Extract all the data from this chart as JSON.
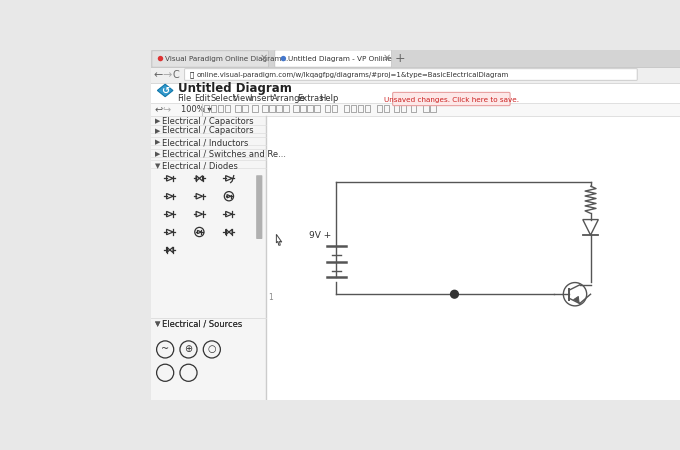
{
  "bg_color": "#e8e8e8",
  "canvas_color": "#ffffff",
  "tab_bar_color": "#d0d0d0",
  "browser_url": "online.visual-paradigm.com/w/lkqagfpg/diagrams/#proj=1&type=BasicElectricalDiagram",
  "tab1_text": "Visual Paradigm Online Diagram...",
  "tab2_text": "Untitled Diagram - VP Online",
  "title_text": "Untitled Diagram",
  "menu_items": [
    "File",
    "Edit",
    "Select",
    "View",
    "Insert",
    "Arrange",
    "Extras",
    "Help"
  ],
  "unsaved_text": "Unsaved changes. Click here to save.",
  "sidebar_categories": [
    "Electrical / Capacitors",
    "Electrical / Inductors",
    "Electrical / Switches and Re...",
    "Electrical / Diodes",
    "Electrical / Sources"
  ],
  "zoom_text": "100%",
  "voltage_label": "9V +",
  "sidebar_bg": "#f5f5f5",
  "unsaved_bg": "#fde8e8",
  "unsaved_text_color": "#cc2222",
  "unsaved_border": "#e8a0a0",
  "scrollbar_color": "#b0b0b0",
  "line_color": "#555555",
  "circuit_line_color": "#555555"
}
